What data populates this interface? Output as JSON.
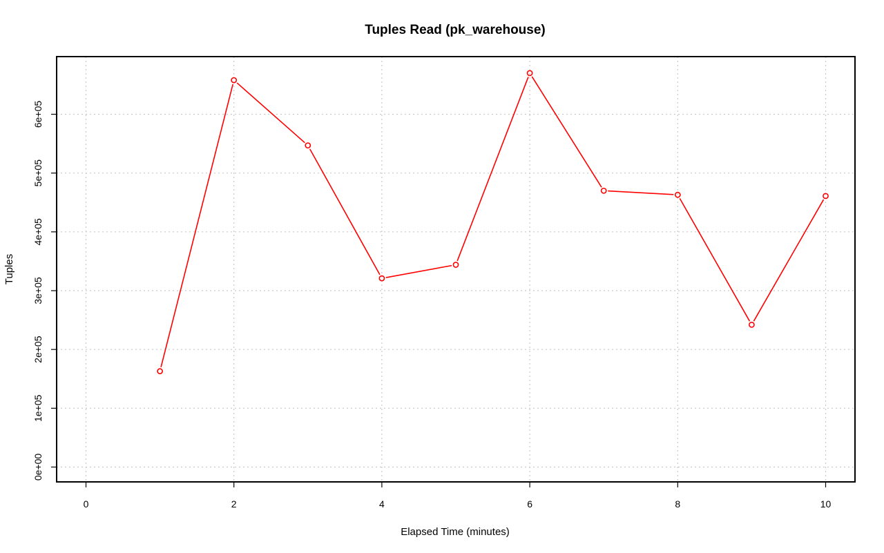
{
  "chart_data": {
    "type": "line",
    "title": "Tuples Read (pk_warehouse)",
    "xlabel": "Elapsed Time (minutes)",
    "ylabel": "Tuples",
    "xlim": [
      0,
      10
    ],
    "ylim": [
      0,
      670000
    ],
    "x_ticks": [
      0,
      2,
      4,
      6,
      8,
      10
    ],
    "x_tick_labels": [
      "0",
      "2",
      "4",
      "6",
      "8",
      "10"
    ],
    "y_ticks": [
      0,
      100000,
      200000,
      300000,
      400000,
      500000,
      600000
    ],
    "y_tick_labels": [
      "0e+00",
      "1e+05",
      "2e+05",
      "3e+05",
      "4e+05",
      "5e+05",
      "6e+05"
    ],
    "grid": true,
    "series": [
      {
        "color": "#ff0000",
        "x": [
          1,
          2,
          3,
          4,
          5,
          6,
          7,
          8,
          9,
          10
        ],
        "y": [
          163000,
          658000,
          547000,
          321000,
          344000,
          670000,
          470000,
          463000,
          242000,
          461000
        ]
      }
    ]
  }
}
